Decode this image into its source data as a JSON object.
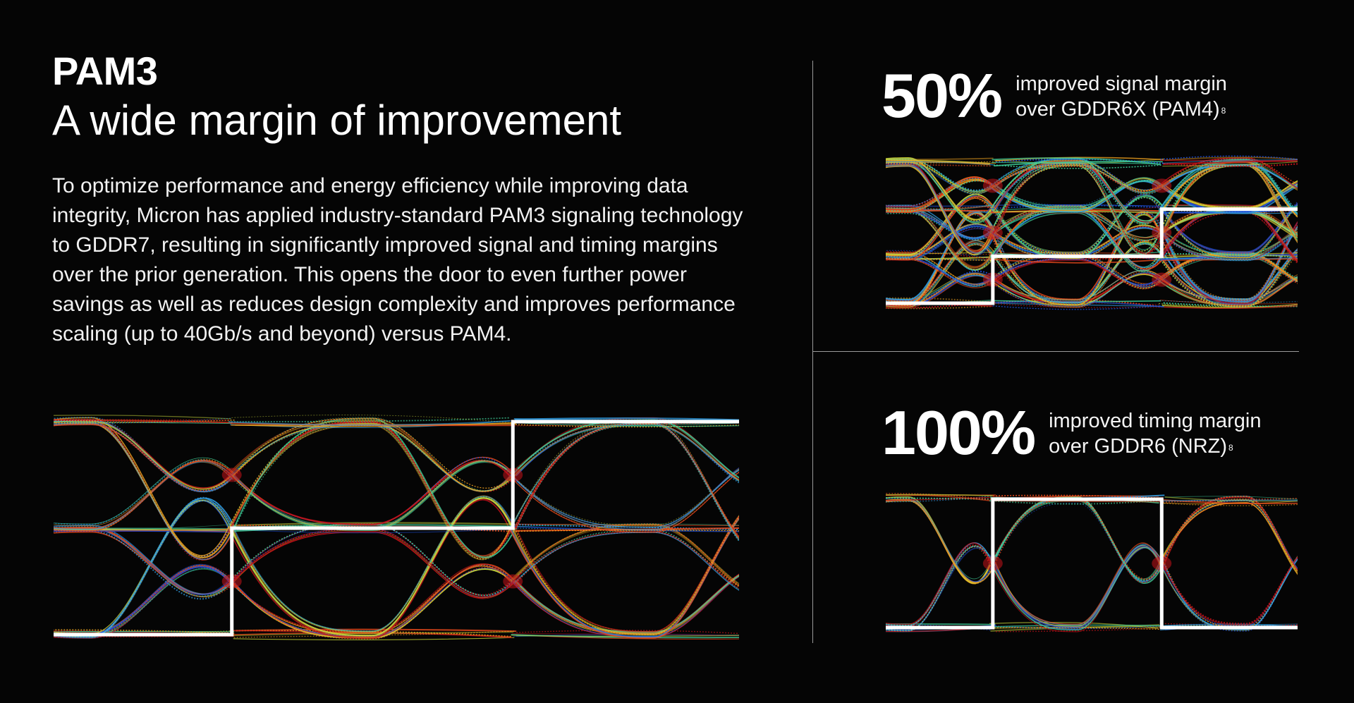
{
  "header": {
    "title": "PAM3",
    "subtitle": "A wide margin of improvement"
  },
  "body": {
    "paragraph": "To optimize performance and energy efficiency while improving data integrity, Micron has applied industry-standard PAM3 signaling technology to GDDR7, resulting in significantly improved signal and timing margins over the prior generation. This opens the door to even further power savings as well as reduces design complexity and improves performance scaling (up to 40Gb/s and beyond) versus PAM4."
  },
  "stats": [
    {
      "value": "50%",
      "line1": "improved signal margin",
      "line2": "over GDDR6X (PAM4)",
      "footnote": "8"
    },
    {
      "value": "100%",
      "line1": "improved timing margin",
      "line2": "over GDDR6 (NRZ)",
      "footnote": "8"
    }
  ],
  "diagrams": [
    {
      "name": "pam3-eye-diagram",
      "levels": 3,
      "step_levels": [
        0,
        1,
        2
      ]
    },
    {
      "name": "pam4-eye-diagram",
      "levels": 4,
      "step_levels": [
        0,
        1,
        2
      ]
    },
    {
      "name": "nrz-eye-diagram",
      "levels": 2,
      "step_levels": [
        0,
        1,
        0
      ]
    }
  ],
  "colors": {
    "background": "#050505",
    "text": "#ffffff",
    "divider": "#9a9a9a",
    "trace_palette": [
      "#1f4fd8",
      "#2f9be0",
      "#3fcf9a",
      "#c9d83a",
      "#f0a21f",
      "#e84a1c",
      "#c4121a"
    ],
    "step_line": "#ffffff"
  }
}
